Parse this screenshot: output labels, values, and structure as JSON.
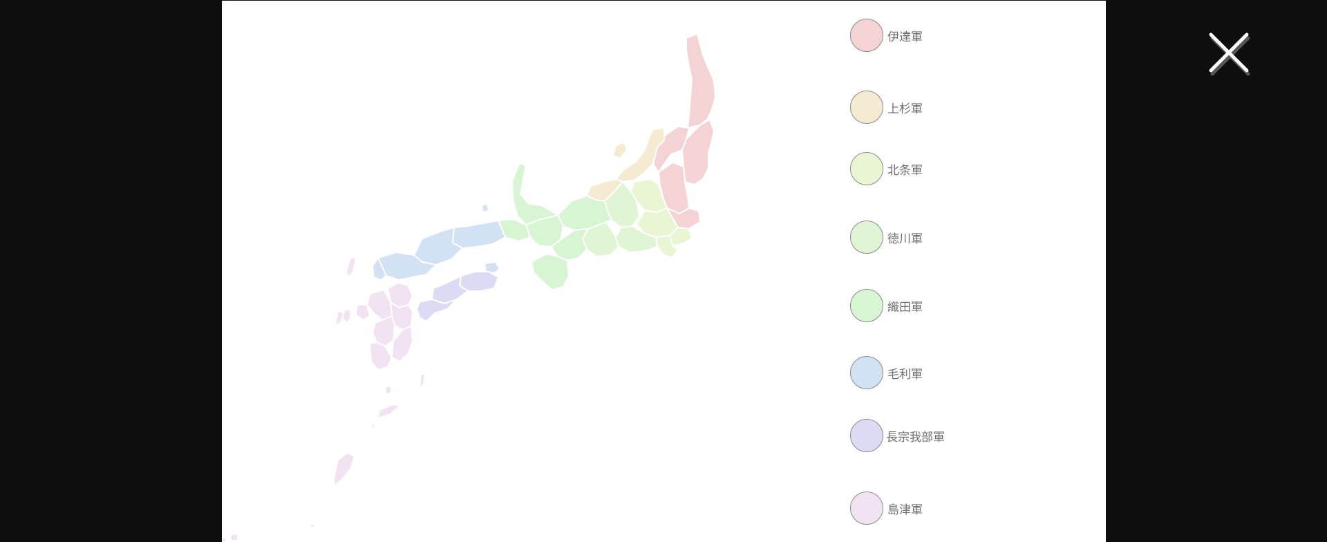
{
  "legend": {
    "items": [
      {
        "label": "伊達軍",
        "color": "#f4d3d5"
      },
      {
        "label": "上杉軍",
        "color": "#f5ebd3"
      },
      {
        "label": "北条軍",
        "color": "#eaf5d3"
      },
      {
        "label": "徳川軍",
        "color": "#e0f5d3"
      },
      {
        "label": "織田軍",
        "color": "#d7f5d3"
      },
      {
        "label": "毛利軍",
        "color": "#d3e1f5"
      },
      {
        "label": "長宗我部軍",
        "color": "#dcdaf5"
      },
      {
        "label": "島津軍",
        "color": "#f2e3f2"
      }
    ]
  },
  "icons": {
    "close": "close-icon"
  }
}
